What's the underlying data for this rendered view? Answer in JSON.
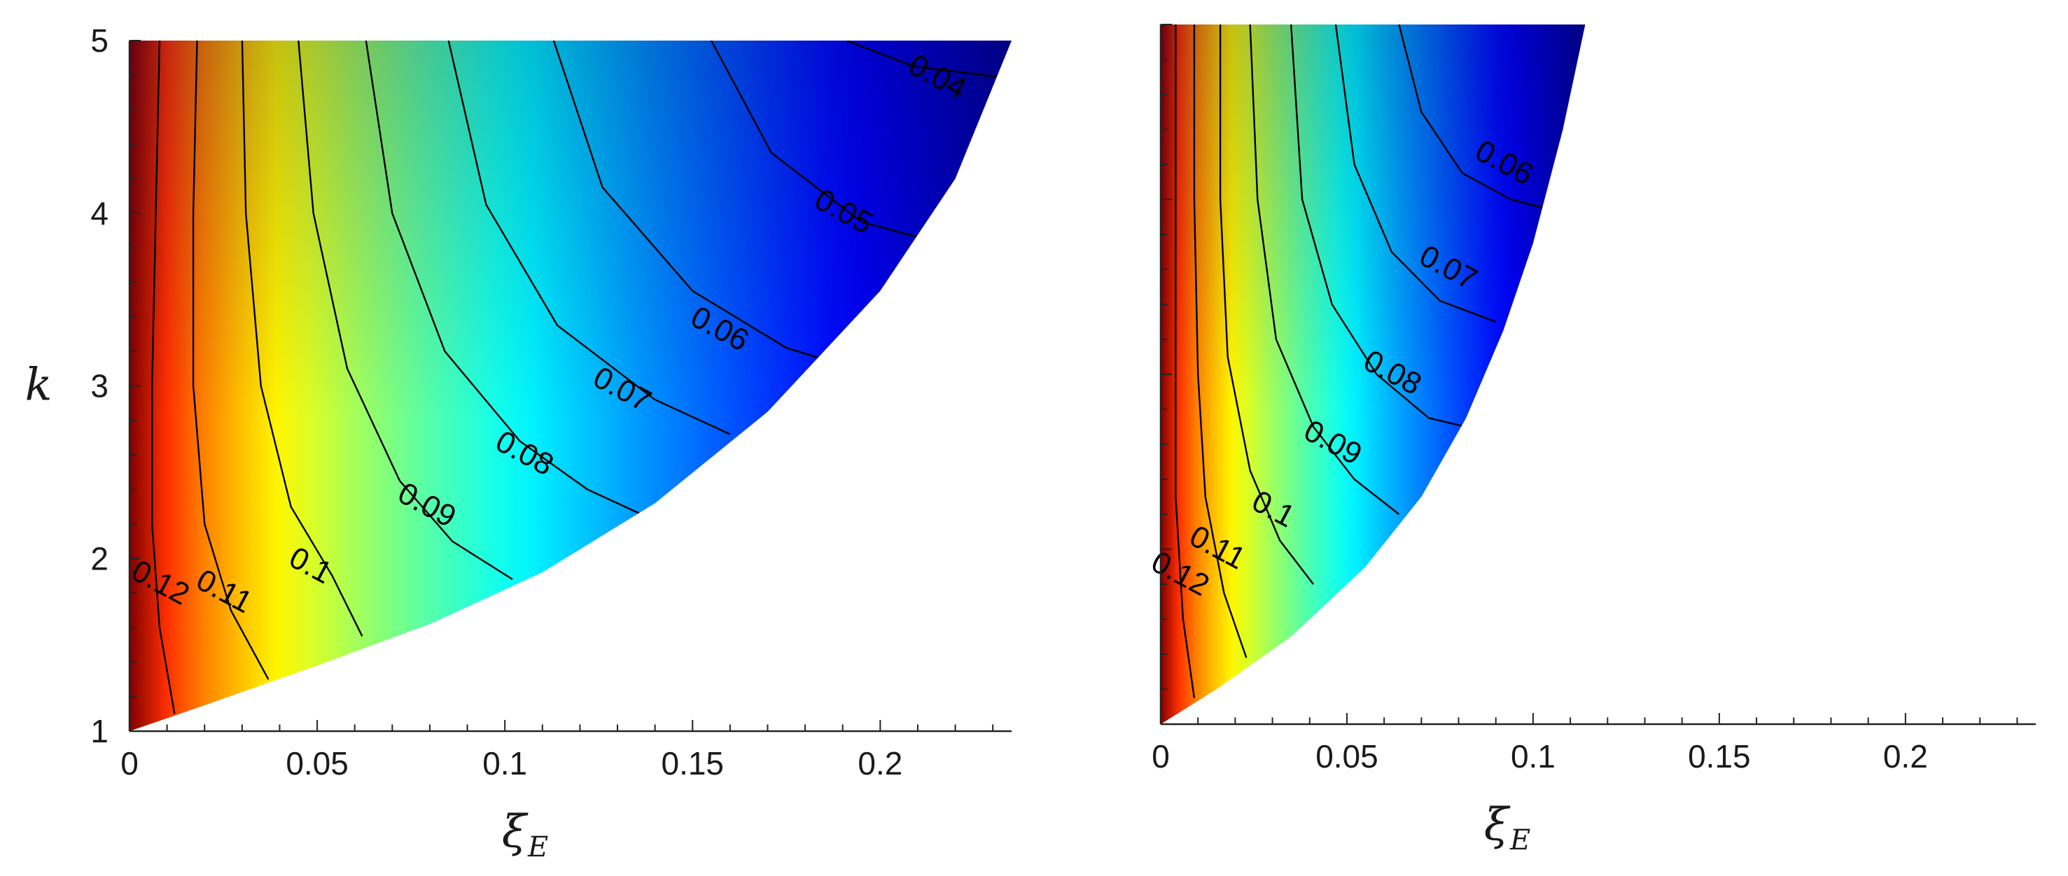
{
  "chart_data": [
    {
      "type": "heatmap",
      "subtype": "filled-contour",
      "colormap": "jet",
      "title": "",
      "xlabel": "ξ",
      "xlabel_sub": "E",
      "ylabel": "k",
      "xlim": [
        0,
        0.235
      ],
      "ylim": [
        1,
        5
      ],
      "xticks": [
        0,
        0.05,
        0.1,
        0.15,
        0.2
      ],
      "xtick_labels": [
        "0",
        "0.05",
        "0.1",
        "0.15",
        "0.2"
      ],
      "yticks": [
        1,
        2,
        3,
        4,
        5
      ],
      "ytick_labels": [
        "1",
        "2",
        "3",
        "4",
        "5"
      ],
      "value_range": [
        0.035,
        0.13
      ],
      "boundary": {
        "description": "feasible region bounded below-right by curve",
        "points": [
          [
            0,
            1
          ],
          [
            0.02,
            1.15
          ],
          [
            0.05,
            1.38
          ],
          [
            0.08,
            1.62
          ],
          [
            0.11,
            1.92
          ],
          [
            0.14,
            2.32
          ],
          [
            0.17,
            2.85
          ],
          [
            0.2,
            3.55
          ],
          [
            0.22,
            4.2
          ],
          [
            0.235,
            5
          ]
        ]
      },
      "contours": [
        {
          "level": 0.12,
          "label": "0.12",
          "points": [
            [
              0.008,
              5
            ],
            [
              0.007,
              4
            ],
            [
              0.006,
              3
            ],
            [
              0.006,
              2.2
            ],
            [
              0.008,
              1.6
            ],
            [
              0.012,
              1.1
            ]
          ],
          "label_at": [
            0.008,
            1.85
          ]
        },
        {
          "level": 0.11,
          "label": "0.11",
          "points": [
            [
              0.018,
              5
            ],
            [
              0.017,
              4
            ],
            [
              0.017,
              3
            ],
            [
              0.02,
              2.2
            ],
            [
              0.027,
              1.7
            ],
            [
              0.037,
              1.3
            ]
          ],
          "label_at": [
            0.025,
            1.8
          ]
        },
        {
          "level": 0.1,
          "label": "0.1",
          "points": [
            [
              0.03,
              5
            ],
            [
              0.031,
              4
            ],
            [
              0.035,
              3
            ],
            [
              0.043,
              2.3
            ],
            [
              0.054,
              1.9
            ],
            [
              0.062,
              1.55
            ]
          ],
          "label_at": [
            0.048,
            1.95
          ]
        },
        {
          "level": 0.09,
          "label": "0.09",
          "points": [
            [
              0.045,
              5
            ],
            [
              0.049,
              4
            ],
            [
              0.058,
              3.1
            ],
            [
              0.072,
              2.45
            ],
            [
              0.086,
              2.1
            ],
            [
              0.102,
              1.88
            ]
          ],
          "label_at": [
            0.079,
            2.3
          ]
        },
        {
          "level": 0.08,
          "label": "0.08",
          "points": [
            [
              0.063,
              5
            ],
            [
              0.07,
              4
            ],
            [
              0.084,
              3.2
            ],
            [
              0.104,
              2.68
            ],
            [
              0.122,
              2.4
            ],
            [
              0.137,
              2.25
            ]
          ],
          "label_at": [
            0.105,
            2.6
          ]
        },
        {
          "level": 0.07,
          "label": "0.07",
          "points": [
            [
              0.085,
              5
            ],
            [
              0.095,
              4.05
            ],
            [
              0.114,
              3.35
            ],
            [
              0.14,
              2.92
            ],
            [
              0.16,
              2.72
            ]
          ],
          "label_at": [
            0.131,
            2.97
          ]
        },
        {
          "level": 0.06,
          "label": "0.06",
          "points": [
            [
              0.113,
              5
            ],
            [
              0.126,
              4.15
            ],
            [
              0.15,
              3.55
            ],
            [
              0.175,
              3.22
            ],
            [
              0.19,
              3.12
            ]
          ],
          "label_at": [
            0.157,
            3.32
          ]
        },
        {
          "level": 0.05,
          "label": "0.05",
          "points": [
            [
              0.155,
              5
            ],
            [
              0.171,
              4.35
            ],
            [
              0.195,
              3.95
            ],
            [
              0.212,
              3.85
            ]
          ],
          "label_at": [
            0.19,
            4.0
          ]
        },
        {
          "level": 0.04,
          "label": "0.04",
          "points": [
            [
              0.191,
              5
            ],
            [
              0.209,
              4.85
            ],
            [
              0.235,
              4.78
            ]
          ],
          "label_at": [
            0.215,
            4.78
          ]
        }
      ]
    },
    {
      "type": "heatmap",
      "subtype": "filled-contour",
      "colormap": "jet",
      "title": "",
      "xlabel": "ξ",
      "xlabel_sub": "E",
      "ylabel": "",
      "xlim": [
        0,
        0.235
      ],
      "ylim": [
        1,
        5
      ],
      "xticks": [
        0,
        0.05,
        0.1,
        0.15,
        0.2
      ],
      "xtick_labels": [
        "0",
        "0.05",
        "0.1",
        "0.15",
        "0.2"
      ],
      "yticks": [
        1,
        2,
        3,
        4,
        5
      ],
      "ytick_labels": [],
      "value_range": [
        0.045,
        0.13
      ],
      "boundary": {
        "description": "feasible region bounded below-right by curve",
        "points": [
          [
            0,
            1
          ],
          [
            0.015,
            1.2
          ],
          [
            0.035,
            1.5
          ],
          [
            0.055,
            1.9
          ],
          [
            0.07,
            2.3
          ],
          [
            0.082,
            2.75
          ],
          [
            0.092,
            3.25
          ],
          [
            0.1,
            3.75
          ],
          [
            0.108,
            4.4
          ],
          [
            0.114,
            5
          ]
        ]
      },
      "contours": [
        {
          "level": 0.12,
          "label": "0.12",
          "points": [
            [
              0.004,
              5
            ],
            [
              0.004,
              4
            ],
            [
              0.004,
              3
            ],
            [
              0.004,
              2.3
            ],
            [
              0.006,
              1.6
            ],
            [
              0.009,
              1.15
            ]
          ],
          "label_at": [
            0.005,
            1.85
          ]
        },
        {
          "level": 0.11,
          "label": "0.11",
          "points": [
            [
              0.009,
              5
            ],
            [
              0.009,
              4
            ],
            [
              0.01,
              3
            ],
            [
              0.012,
              2.3
            ],
            [
              0.017,
              1.75
            ],
            [
              0.023,
              1.38
            ]
          ],
          "label_at": [
            0.015,
            2.0
          ]
        },
        {
          "level": 0.1,
          "label": "0.1",
          "points": [
            [
              0.016,
              5
            ],
            [
              0.016,
              4
            ],
            [
              0.018,
              3.1
            ],
            [
              0.024,
              2.45
            ],
            [
              0.032,
              2.05
            ],
            [
              0.041,
              1.8
            ]
          ],
          "label_at": [
            0.03,
            2.22
          ]
        },
        {
          "level": 0.09,
          "label": "0.09",
          "points": [
            [
              0.024,
              5
            ],
            [
              0.026,
              4
            ],
            [
              0.031,
              3.2
            ],
            [
              0.041,
              2.7
            ],
            [
              0.052,
              2.4
            ],
            [
              0.064,
              2.2
            ]
          ],
          "label_at": [
            0.046,
            2.6
          ]
        },
        {
          "level": 0.08,
          "label": "0.08",
          "points": [
            [
              0.035,
              5
            ],
            [
              0.038,
              4
            ],
            [
              0.046,
              3.4
            ],
            [
              0.058,
              3.0
            ],
            [
              0.072,
              2.75
            ],
            [
              0.082,
              2.7
            ]
          ],
          "label_at": [
            0.062,
            3.0
          ]
        },
        {
          "level": 0.07,
          "label": "0.07",
          "points": [
            [
              0.047,
              5
            ],
            [
              0.052,
              4.2
            ],
            [
              0.062,
              3.7
            ],
            [
              0.075,
              3.42
            ],
            [
              0.09,
              3.3
            ]
          ],
          "label_at": [
            0.077,
            3.6
          ]
        },
        {
          "level": 0.06,
          "label": "0.06",
          "points": [
            [
              0.064,
              5
            ],
            [
              0.07,
              4.5
            ],
            [
              0.081,
              4.15
            ],
            [
              0.094,
              4.0
            ],
            [
              0.103,
              3.95
            ]
          ],
          "label_at": [
            0.092,
            4.2
          ]
        }
      ]
    }
  ]
}
